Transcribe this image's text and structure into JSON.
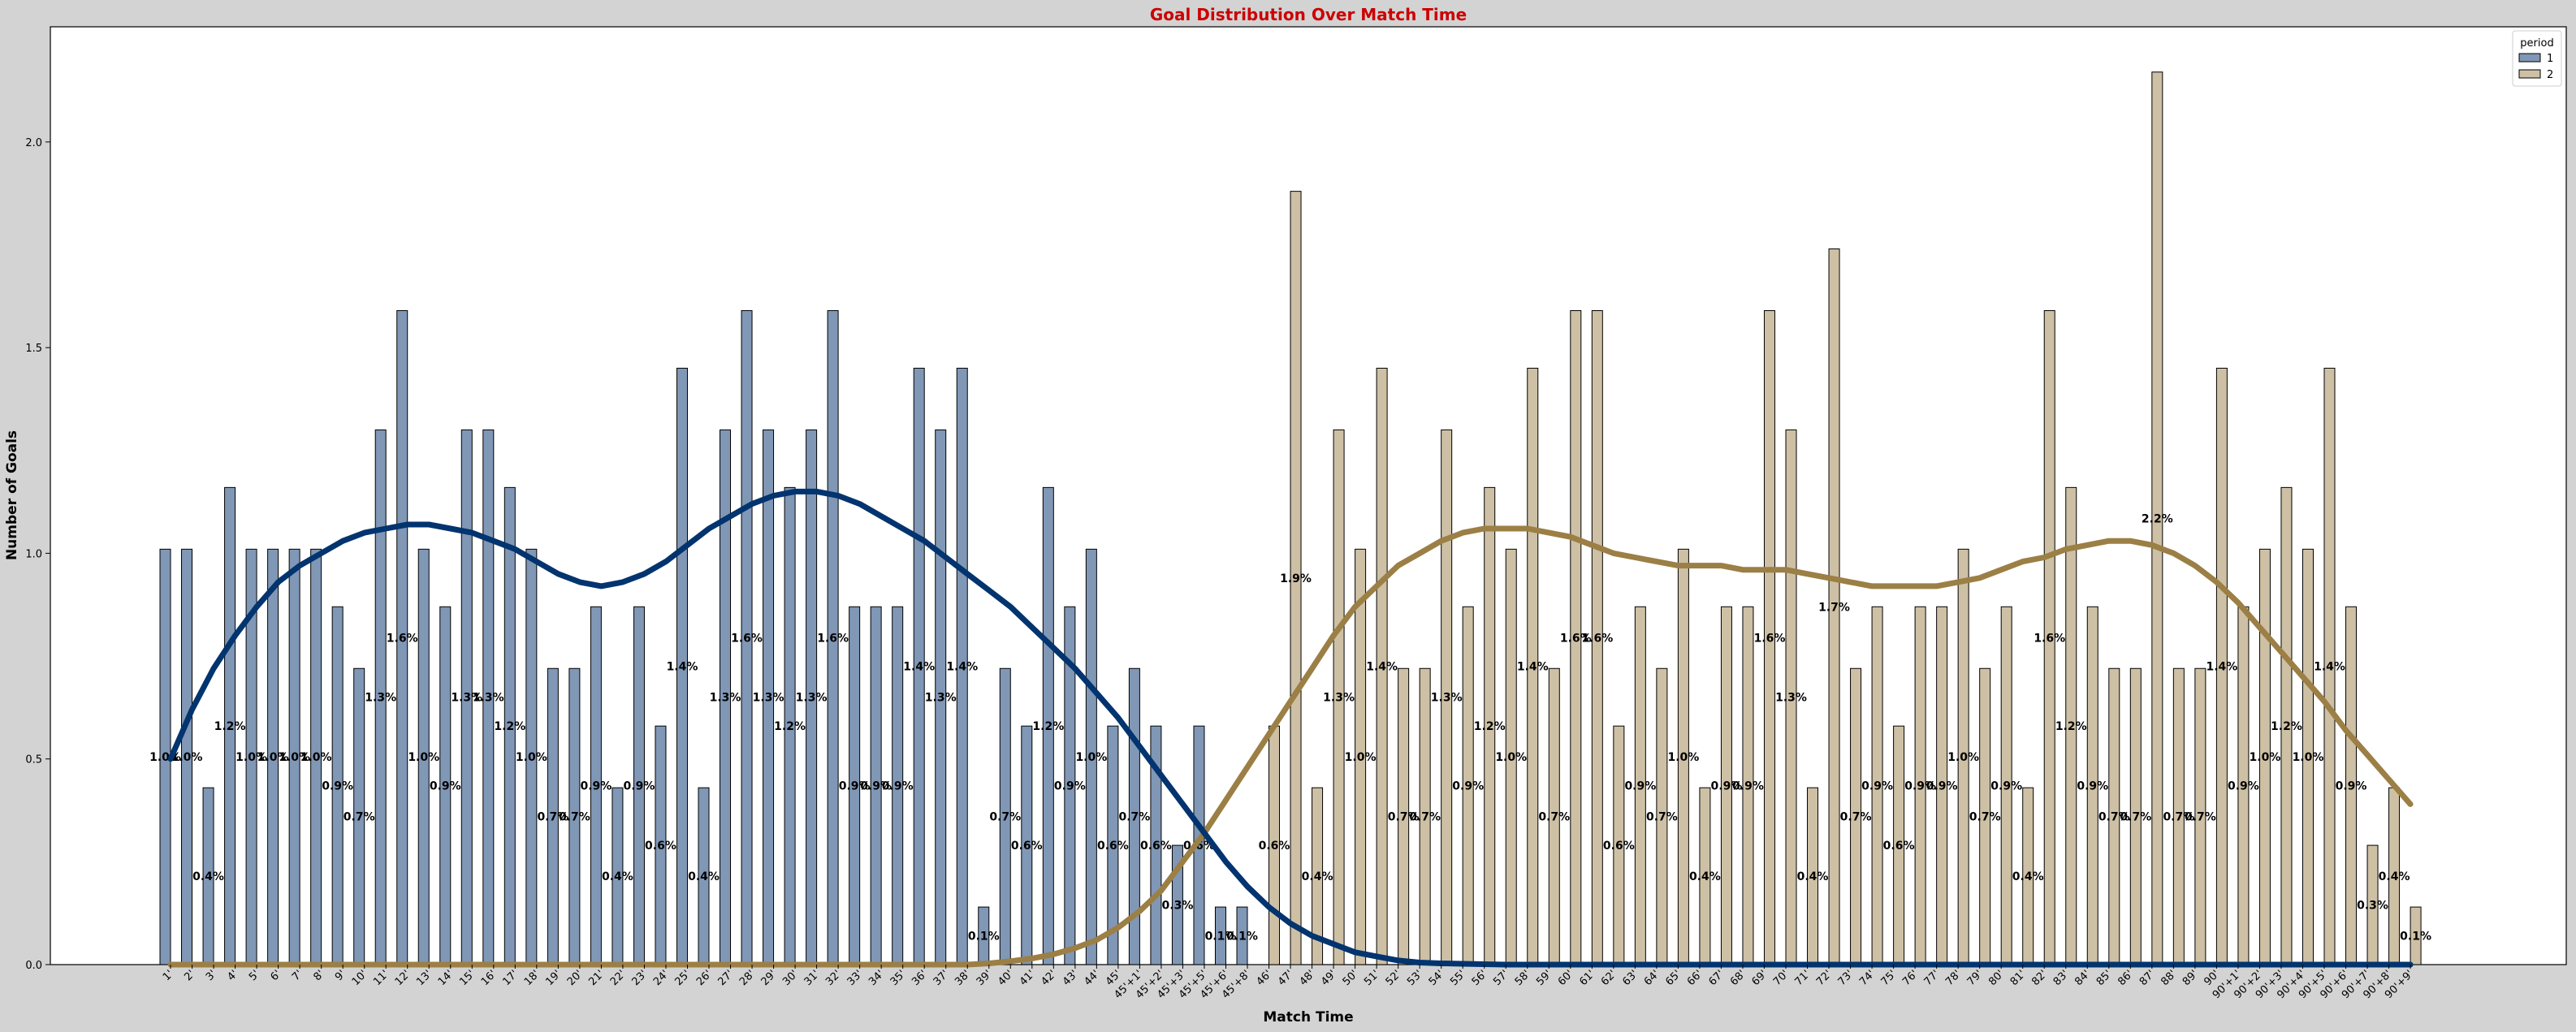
{
  "chart_data": {
    "type": "bar",
    "title": "Goal Distribution Over Match Time",
    "xlabel": "Match Time",
    "ylabel": "Number of Goals",
    "ylim": [
      0,
      2.28
    ],
    "yticks": [
      0.0,
      0.5,
      1.0,
      1.5,
      2.0
    ],
    "grid": false,
    "legend": {
      "title": "period",
      "placement": "top-right",
      "entries": [
        "1",
        "2"
      ]
    },
    "colors": {
      "period_1_bar": "#8097b6",
      "period_2_bar": "#cec0a5",
      "period_1_curve": "#02346f",
      "period_2_curve": "#9b7f45",
      "title": "#cc0000",
      "bar_edge": "#000000"
    },
    "categories": [
      "1'",
      "2'",
      "3'",
      "4'",
      "5'",
      "6'",
      "7'",
      "8'",
      "9'",
      "10'",
      "11'",
      "12'",
      "13'",
      "14'",
      "15'",
      "16'",
      "17'",
      "18'",
      "19'",
      "20'",
      "21'",
      "22'",
      "23'",
      "24'",
      "25'",
      "26'",
      "27'",
      "28'",
      "29'",
      "30'",
      "31'",
      "32'",
      "33'",
      "34'",
      "35'",
      "36'",
      "37'",
      "38'",
      "39'",
      "40'",
      "41'",
      "42'",
      "43'",
      "44'",
      "45'",
      "45'+1'",
      "45'+2'",
      "45'+3'",
      "45'+5'",
      "45'+6'",
      "45'+8'",
      "46'",
      "47'",
      "48'",
      "49'",
      "50'",
      "51'",
      "52'",
      "53'",
      "54'",
      "55'",
      "56'",
      "57'",
      "58'",
      "59'",
      "60'",
      "61'",
      "62'",
      "63'",
      "64'",
      "65'",
      "66'",
      "67'",
      "68'",
      "69'",
      "70'",
      "71'",
      "72'",
      "73'",
      "74'",
      "75'",
      "76'",
      "77'",
      "78'",
      "79'",
      "80'",
      "81'",
      "82'",
      "83'",
      "84'",
      "85'",
      "86'",
      "87'",
      "88'",
      "89'",
      "90'",
      "90'+1'",
      "90'+2'",
      "90'+3'",
      "90'+4'",
      "90'+5'",
      "90'+6'",
      "90'+7'",
      "90'+8'",
      "90'+9'"
    ],
    "series": [
      {
        "name": "1",
        "values": [
          1.01,
          1.01,
          0.43,
          1.16,
          1.01,
          1.01,
          1.01,
          1.01,
          0.87,
          0.72,
          1.3,
          1.59,
          1.01,
          0.87,
          1.3,
          1.3,
          1.16,
          1.01,
          0.72,
          0.72,
          0.87,
          0.43,
          0.87,
          0.58,
          1.45,
          0.43,
          1.3,
          1.59,
          1.3,
          1.16,
          1.3,
          1.59,
          0.87,
          0.87,
          0.87,
          1.45,
          1.3,
          1.45,
          0.14,
          0.72,
          0.58,
          1.16,
          0.87,
          1.01,
          0.58,
          0.72,
          0.58,
          0.29,
          0.58,
          0.14,
          0.14,
          0,
          0,
          0,
          0,
          0,
          0,
          0,
          0,
          0,
          0,
          0,
          0,
          0,
          0,
          0,
          0,
          0,
          0,
          0,
          0,
          0,
          0,
          0,
          0,
          0,
          0,
          0,
          0,
          0,
          0,
          0,
          0,
          0,
          0,
          0,
          0,
          0,
          0,
          0,
          0,
          0,
          0,
          0,
          0,
          0,
          0,
          0,
          0,
          0,
          0,
          0,
          0,
          0,
          0
        ],
        "pct_labels": [
          "1.0%",
          "1.0%",
          "0.4%",
          "1.2%",
          "1.0%",
          "1.0%",
          "1.0%",
          "1.0%",
          "0.9%",
          "0.7%",
          "1.3%",
          "1.6%",
          "1.0%",
          "0.9%",
          "1.3%",
          "1.3%",
          "1.2%",
          "1.0%",
          "0.7%",
          "0.7%",
          "0.9%",
          "0.4%",
          "0.9%",
          "0.6%",
          "1.4%",
          "0.4%",
          "1.3%",
          "1.6%",
          "1.3%",
          "1.2%",
          "1.3%",
          "1.6%",
          "0.9%",
          "0.9%",
          "0.9%",
          "1.4%",
          "1.3%",
          "1.4%",
          "0.1%",
          "0.7%",
          "0.6%",
          "1.2%",
          "0.9%",
          "1.0%",
          "0.6%",
          "0.7%",
          "0.6%",
          "0.3%",
          "0.6%",
          "0.1%",
          "0.1%"
        ],
        "density_curve": [
          0.5,
          0.62,
          0.72,
          0.8,
          0.87,
          0.93,
          0.97,
          1.0,
          1.03,
          1.05,
          1.06,
          1.07,
          1.07,
          1.06,
          1.05,
          1.03,
          1.01,
          0.98,
          0.95,
          0.93,
          0.92,
          0.93,
          0.95,
          0.98,
          1.02,
          1.06,
          1.09,
          1.12,
          1.14,
          1.15,
          1.15,
          1.14,
          1.12,
          1.09,
          1.06,
          1.03,
          0.99,
          0.95,
          0.91,
          0.87,
          0.82,
          0.77,
          0.72,
          0.66,
          0.6,
          0.53,
          0.46,
          0.39,
          0.32,
          0.25,
          0.19,
          0.14,
          0.1,
          0.07,
          0.05,
          0.03,
          0.02,
          0.01,
          0.005,
          0.003,
          0.002,
          0.001,
          0,
          0,
          0,
          0,
          0,
          0,
          0,
          0,
          0,
          0,
          0,
          0,
          0,
          0,
          0,
          0,
          0,
          0,
          0,
          0,
          0,
          0,
          0,
          0,
          0,
          0,
          0,
          0,
          0,
          0,
          0,
          0,
          0,
          0,
          0,
          0,
          0,
          0,
          0,
          0,
          0,
          0,
          0
        ]
      },
      {
        "name": "2",
        "values": [
          0,
          0,
          0,
          0,
          0,
          0,
          0,
          0,
          0,
          0,
          0,
          0,
          0,
          0,
          0,
          0,
          0,
          0,
          0,
          0,
          0,
          0,
          0,
          0,
          0,
          0,
          0,
          0,
          0,
          0,
          0,
          0,
          0,
          0,
          0,
          0,
          0,
          0,
          0,
          0,
          0,
          0,
          0,
          0,
          0,
          0,
          0,
          0,
          0,
          0,
          0,
          0.58,
          1.88,
          0.43,
          1.3,
          1.01,
          1.45,
          0.72,
          0.72,
          1.3,
          0.87,
          1.16,
          1.01,
          1.45,
          0.72,
          1.59,
          1.59,
          0.58,
          0.87,
          0.72,
          1.01,
          0.43,
          0.87,
          0.87,
          1.59,
          1.3,
          0.43,
          1.74,
          0.72,
          0.87,
          0.58,
          0.87,
          0.87,
          1.01,
          0.72,
          0.87,
          0.43,
          1.59,
          1.16,
          0.87,
          0.72,
          0.72,
          2.17,
          0.72,
          0.72,
          1.45,
          0.87,
          1.01,
          1.16,
          1.01,
          1.45,
          0.87,
          0.29,
          0.43,
          0.14
        ],
        "pct_labels": [
          "",
          "",
          "",
          "",
          "",
          "",
          "",
          "",
          "",
          "",
          "",
          "",
          "",
          "",
          "",
          "",
          "",
          "",
          "",
          "",
          "",
          "",
          "",
          "",
          "",
          "",
          "",
          "",
          "",
          "",
          "",
          "",
          "",
          "",
          "",
          "",
          "",
          "",
          "",
          "",
          "",
          "",
          "",
          "",
          "",
          "",
          "",
          "",
          "",
          "",
          "",
          "0.6%",
          "1.9%",
          "0.4%",
          "1.3%",
          "1.0%",
          "1.4%",
          "0.7%",
          "0.7%",
          "1.3%",
          "0.9%",
          "1.2%",
          "1.0%",
          "1.4%",
          "0.7%",
          "1.6%",
          "1.6%",
          "0.6%",
          "0.9%",
          "0.7%",
          "1.0%",
          "0.4%",
          "0.9%",
          "0.9%",
          "1.6%",
          "1.3%",
          "0.4%",
          "1.7%",
          "0.7%",
          "0.9%",
          "0.6%",
          "0.9%",
          "0.9%",
          "1.0%",
          "0.7%",
          "0.9%",
          "0.4%",
          "1.6%",
          "1.2%",
          "0.9%",
          "0.7%",
          "0.7%",
          "2.2%",
          "0.7%",
          "0.7%",
          "1.4%",
          "0.9%",
          "1.0%",
          "1.2%",
          "1.0%",
          "1.4%",
          "0.9%",
          "0.3%",
          "0.4%",
          "0.1%"
        ],
        "density_curve": [
          0,
          0,
          0,
          0,
          0,
          0,
          0,
          0,
          0,
          0,
          0,
          0,
          0,
          0,
          0,
          0,
          0,
          0,
          0,
          0,
          0,
          0,
          0,
          0,
          0,
          0,
          0,
          0,
          0,
          0,
          0,
          0,
          0,
          0,
          0,
          0,
          0,
          0,
          0.003,
          0.008,
          0.015,
          0.025,
          0.04,
          0.06,
          0.09,
          0.13,
          0.18,
          0.25,
          0.32,
          0.4,
          0.48,
          0.56,
          0.64,
          0.72,
          0.8,
          0.87,
          0.92,
          0.97,
          1.0,
          1.03,
          1.05,
          1.06,
          1.06,
          1.06,
          1.05,
          1.04,
          1.02,
          1.0,
          0.99,
          0.98,
          0.97,
          0.97,
          0.97,
          0.96,
          0.96,
          0.96,
          0.95,
          0.94,
          0.93,
          0.92,
          0.92,
          0.92,
          0.92,
          0.93,
          0.94,
          0.96,
          0.98,
          0.99,
          1.01,
          1.02,
          1.03,
          1.03,
          1.02,
          1.0,
          0.97,
          0.93,
          0.88,
          0.82,
          0.76,
          0.7,
          0.64,
          0.57,
          0.51,
          0.45,
          0.39
        ]
      }
    ]
  }
}
